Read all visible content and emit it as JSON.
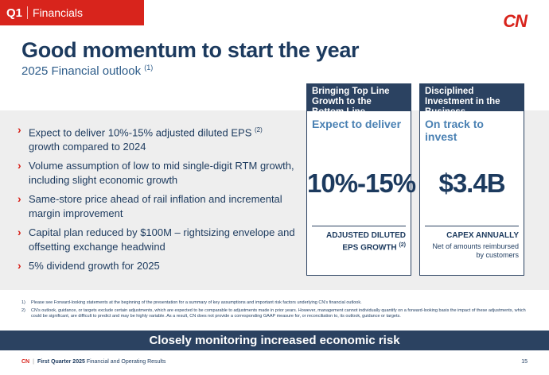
{
  "header": {
    "quarter": "Q1",
    "section": "Financials",
    "logo_text": "CN"
  },
  "title": "Good momentum to start the year",
  "subtitle": "2025 Financial outlook",
  "subtitle_ref": "(1)",
  "bullets": [
    {
      "text_before": "Expect to deliver 10%-15% adjusted diluted EPS ",
      "ref": "(2)",
      "text_after": " growth compared to 2024"
    },
    {
      "text_before": "Volume assumption of low to mid single-digit RTM growth, including slight economic growth",
      "ref": "",
      "text_after": ""
    },
    {
      "text_before": "Same-store price ahead of rail inflation and incremental margin improvement",
      "ref": "",
      "text_after": ""
    },
    {
      "text_before": "Capital plan reduced by $100M – rightsizing envelope and offsetting exchange headwind",
      "ref": "",
      "text_after": ""
    },
    {
      "text_before": "5% dividend growth for 2025",
      "ref": "",
      "text_after": ""
    }
  ],
  "cards": [
    {
      "heading": "Bringing Top Line Growth to the Bottom Line",
      "lead": "Expect to deliver",
      "figure": "10%-15%",
      "caption": "ADJUSTED DILUTED EPS GROWTH",
      "caption_ref": "(2)",
      "note": ""
    },
    {
      "heading": "Disciplined Investment in the Business",
      "lead": "On track to invest",
      "figure": "$3.4B",
      "caption": "CAPEX ANNUALLY",
      "caption_ref": "",
      "note": "Net of amounts reimbursed by customers"
    }
  ],
  "footnotes": [
    {
      "num": "1)",
      "text": "Please see Forward-looking statements at the beginning of the presentation for a summary of key assumptions and important risk factors underlying CN's financial outlook."
    },
    {
      "num": "2)",
      "text": "CN's outlook, guidance, or targets exclude certain adjustments, which are expected to be comparable to adjustments made in prior years. However, management cannot individually quantify on a forward-looking basis the impact of these adjustments, which could be significant, are difficult to predict and may be highly variable. As a result, CN does not provide a corresponding GAAP measure for, or reconciliation to, its outlook, guidance or targets."
    }
  ],
  "banner": "Closely monitoring increased economic risk",
  "footer": {
    "brand": "CN",
    "bold_part": "First Quarter 2025",
    "rest": " Financial and Operating Results",
    "page": "15"
  },
  "colors": {
    "accent_red": "#d8241c",
    "navy": "#2b4261",
    "light_blue": "#4a81b3"
  }
}
